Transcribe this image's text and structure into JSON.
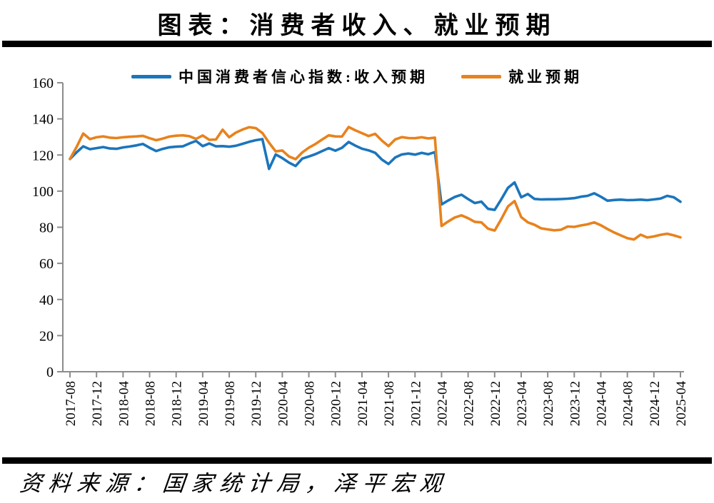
{
  "title": "图表：消费者收入、就业预期",
  "source_note": "资料来源：国家统计局，泽平宏观",
  "colors": {
    "income": "#1B75BC",
    "employment": "#E8821D",
    "axis": "#8C8C8C",
    "rule": "#000000"
  },
  "chart_data": {
    "type": "line",
    "title": "图表：消费者收入、就业预期",
    "xlabel": "",
    "ylabel": "",
    "ylim": [
      0,
      160
    ],
    "yticks": [
      0,
      20,
      40,
      60,
      80,
      100,
      120,
      140,
      160
    ],
    "grid": false,
    "legend_position": "top",
    "x": [
      "2017-08",
      "2017-09",
      "2017-10",
      "2017-11",
      "2017-12",
      "2018-01",
      "2018-02",
      "2018-03",
      "2018-04",
      "2018-05",
      "2018-06",
      "2018-07",
      "2018-08",
      "2018-09",
      "2018-10",
      "2018-11",
      "2018-12",
      "2019-01",
      "2019-02",
      "2019-03",
      "2019-04",
      "2019-05",
      "2019-06",
      "2019-07",
      "2019-08",
      "2019-09",
      "2019-10",
      "2019-11",
      "2019-12",
      "2020-01",
      "2020-02",
      "2020-03",
      "2020-04",
      "2020-05",
      "2020-06",
      "2020-07",
      "2020-08",
      "2020-09",
      "2020-10",
      "2020-11",
      "2020-12",
      "2021-01",
      "2021-02",
      "2021-03",
      "2021-04",
      "2021-05",
      "2021-06",
      "2021-07",
      "2021-08",
      "2021-09",
      "2021-10",
      "2021-11",
      "2021-12",
      "2022-01",
      "2022-02",
      "2022-03",
      "2022-04",
      "2022-05",
      "2022-06",
      "2022-07",
      "2022-08",
      "2022-09",
      "2022-10",
      "2022-11",
      "2022-12",
      "2023-01",
      "2023-02",
      "2023-03",
      "2023-04",
      "2023-05",
      "2023-06",
      "2023-07",
      "2023-08",
      "2023-09",
      "2023-10",
      "2023-11",
      "2023-12",
      "2024-01",
      "2024-02",
      "2024-03",
      "2024-04",
      "2024-05",
      "2024-06",
      "2024-07",
      "2024-08",
      "2024-09",
      "2024-10",
      "2024-11",
      "2024-12",
      "2025-01",
      "2025-02",
      "2025-03",
      "2025-04"
    ],
    "x_tick_every": 4,
    "series": [
      {
        "name": "中国消费者信心指数:收入预期",
        "color": "#1B75BC",
        "values": [
          117.8,
          121.5,
          124.8,
          123.2,
          123.8,
          124.4,
          123.6,
          123.4,
          124.2,
          124.7,
          125.3,
          126.1,
          124.0,
          122.2,
          123.4,
          124.3,
          124.6,
          124.8,
          126.4,
          127.8,
          124.9,
          126.4,
          124.8,
          124.9,
          124.6,
          125.1,
          126.2,
          127.3,
          128.2,
          128.8,
          112.3,
          120.3,
          118.3,
          115.8,
          113.9,
          118.0,
          119.2,
          120.5,
          122.2,
          123.8,
          122.4,
          124.0,
          127.2,
          125.2,
          123.5,
          122.6,
          121.2,
          117.5,
          115.0,
          118.6,
          120.3,
          120.8,
          120.2,
          121.2,
          120.4,
          121.6,
          92.6,
          94.8,
          96.8,
          98.0,
          95.6,
          93.4,
          94.2,
          90.2,
          89.6,
          95.5,
          101.8,
          104.8,
          96.6,
          98.4,
          95.7,
          95.4,
          95.5,
          95.5,
          95.6,
          95.8,
          96.1,
          96.9,
          97.4,
          98.8,
          96.9,
          94.7,
          95.1,
          95.3,
          95.0,
          95.1,
          95.3,
          95.0,
          95.4,
          95.9,
          97.4,
          96.6,
          94.1
        ]
      },
      {
        "name": "就业预期",
        "color": "#E8821D",
        "values": [
          117.8,
          124.5,
          131.9,
          128.8,
          129.8,
          130.3,
          129.6,
          129.4,
          129.8,
          130.1,
          130.3,
          130.6,
          129.3,
          128.2,
          129.1,
          130.2,
          130.7,
          130.9,
          130.4,
          128.9,
          130.8,
          128.4,
          128.6,
          134.0,
          129.8,
          132.4,
          134.1,
          135.4,
          134.9,
          132.2,
          126.8,
          122.0,
          122.5,
          119.2,
          117.7,
          121.4,
          124.1,
          126.1,
          128.6,
          130.9,
          130.3,
          130.2,
          135.5,
          133.7,
          132.1,
          130.5,
          131.7,
          128.0,
          124.9,
          128.6,
          129.9,
          129.4,
          129.3,
          129.8,
          129.2,
          129.6,
          80.7,
          83.2,
          85.4,
          86.6,
          85.0,
          83.0,
          82.7,
          79.2,
          78.2,
          84.5,
          91.5,
          94.5,
          85.6,
          82.7,
          81.4,
          79.4,
          78.8,
          78.3,
          78.6,
          80.4,
          80.2,
          81.0,
          81.6,
          82.7,
          81.1,
          79.0,
          77.1,
          75.5,
          73.9,
          73.2,
          75.9,
          74.3,
          74.9,
          75.8,
          76.4,
          75.5,
          74.4
        ]
      }
    ]
  }
}
